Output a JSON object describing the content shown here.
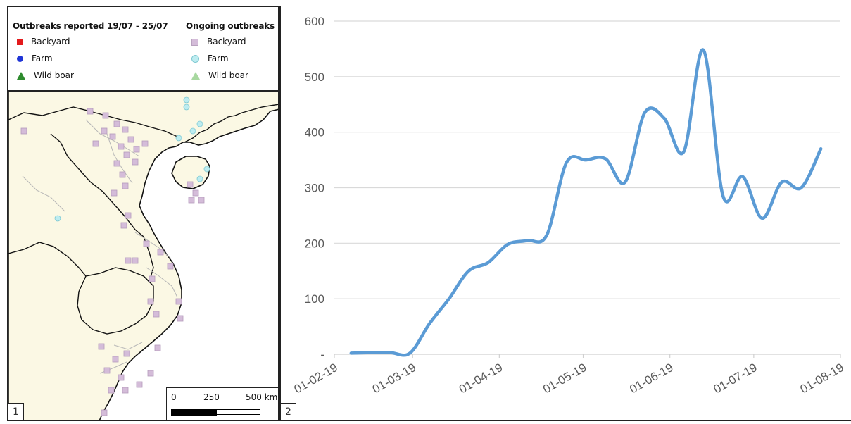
{
  "legend": {
    "left_title": "Outbreaks reported 19/07 - 25/07",
    "right_title": "Ongoing outbreaks",
    "left_items": [
      {
        "label": "Backyard",
        "icon": "square-icon",
        "color": "#e31a1c"
      },
      {
        "label": "Farm",
        "icon": "circle-icon",
        "color": "#1f35d6"
      },
      {
        "label": "Wild boar",
        "icon": "triangle-icon",
        "color": "#2e8b2e"
      }
    ],
    "right_items": [
      {
        "label": "Backyard",
        "icon": "square-icon",
        "color": "#d4bcd9"
      },
      {
        "label": "Farm",
        "icon": "circle-icon",
        "color": "#bdecf0"
      },
      {
        "label": "Wild boar",
        "icon": "triangle-icon",
        "color": "#a8d8a0"
      }
    ]
  },
  "scalebar": {
    "labels": [
      "0",
      "250",
      "500 km"
    ]
  },
  "map_colors": {
    "land": "#fbf8e4",
    "water": "#ffffff",
    "border": "#111111"
  },
  "panel_numbers": [
    "1",
    "2"
  ],
  "chart_data": {
    "type": "line",
    "title": "",
    "xlabel": "",
    "ylabel": "",
    "ylim": [
      0,
      600
    ],
    "yticks": [
      {
        "v": 0,
        "label": "-"
      },
      {
        "v": 100,
        "label": "100"
      },
      {
        "v": 200,
        "label": "200"
      },
      {
        "v": 300,
        "label": "300"
      },
      {
        "v": 400,
        "label": "400"
      },
      {
        "v": 500,
        "label": "500"
      },
      {
        "v": 600,
        "label": "600"
      }
    ],
    "xticks": [
      "01-02-19",
      "01-03-19",
      "01-04-19",
      "01-05-19",
      "01-06-19",
      "01-07-19",
      "01-08-19"
    ],
    "grid": true,
    "color": "#5b9bd5",
    "series": [
      {
        "x": [
          "2019-02-07",
          "2019-02-14",
          "2019-02-21",
          "2019-02-28",
          "2019-03-07",
          "2019-03-14",
          "2019-03-21",
          "2019-03-28",
          "2019-04-04",
          "2019-04-11",
          "2019-04-18",
          "2019-04-25",
          "2019-05-02",
          "2019-05-09",
          "2019-05-16",
          "2019-05-23",
          "2019-05-30",
          "2019-06-06",
          "2019-06-13",
          "2019-06-20",
          "2019-06-27",
          "2019-07-04",
          "2019-07-11",
          "2019-07-18",
          "2019-07-25"
        ],
        "y": [
          2,
          3,
          3,
          2,
          55,
          100,
          150,
          165,
          198,
          205,
          215,
          345,
          350,
          352,
          310,
          435,
          425,
          365,
          548,
          285,
          320,
          245,
          310,
          300,
          370
        ]
      }
    ]
  }
}
